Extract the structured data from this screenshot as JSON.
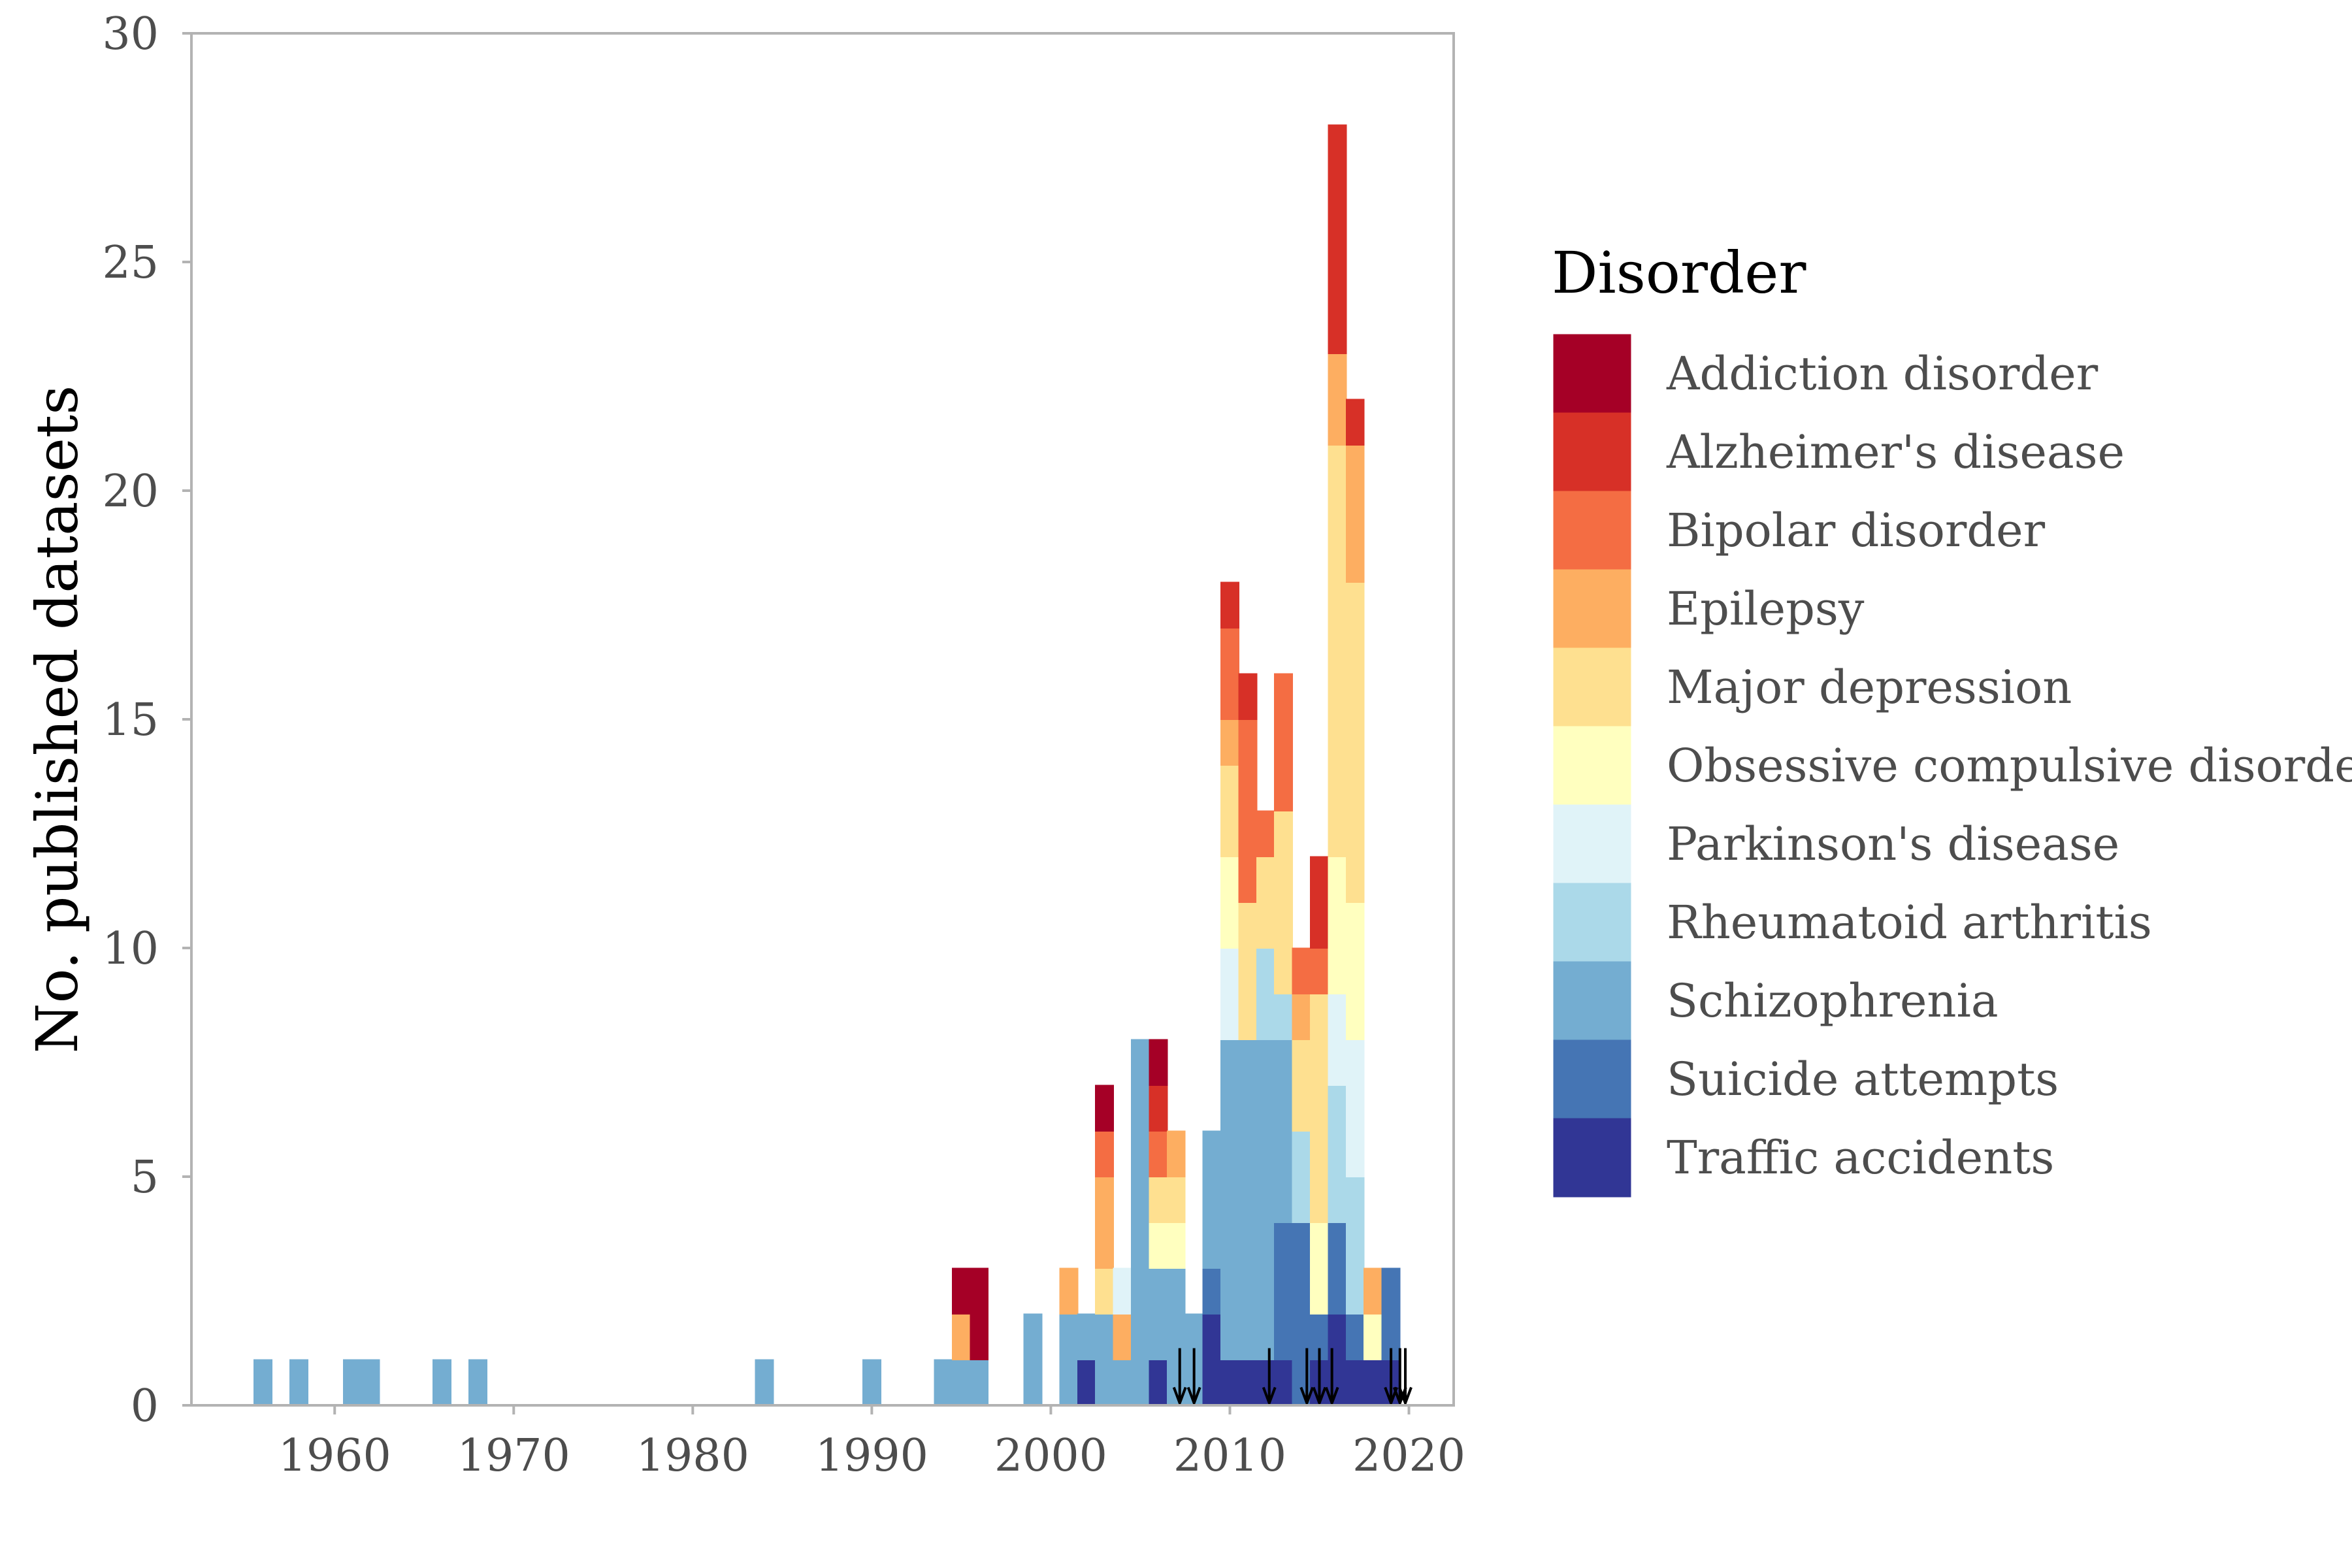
{
  "chart_data": {
    "type": "bar",
    "stacked": true,
    "ylabel": "No. published datasets",
    "xlabel": "",
    "xlim": [
      1952,
      2022.5
    ],
    "ylim": [
      0,
      30
    ],
    "x_ticks": [
      1960,
      1970,
      1980,
      1990,
      2000,
      2010,
      2020
    ],
    "y_ticks": [
      0,
      5,
      10,
      15,
      20,
      25,
      30
    ],
    "grid": false,
    "legend": {
      "title": "Disorder",
      "position": "right",
      "entries": [
        "Addiction disorder",
        "Alzheimer's disease",
        "Bipolar disorder",
        "Epilepsy",
        "Major depression",
        "Obsessive compulsive disorder",
        "Parkinson's disease",
        "Rheumatoid arthritis",
        "Schizophrenia",
        "Suicide attempts",
        "Traffic accidents"
      ]
    },
    "colors": {
      "Addiction disorder": "#a50026",
      "Alzheimer's disease": "#d73027",
      "Bipolar disorder": "#f46d43",
      "Epilepsy": "#fdae61",
      "Major depression": "#fee090",
      "Obsessive compulsive disorder": "#ffffbf",
      "Parkinson's disease": "#e0f3f8",
      "Rheumatoid arthritis": "#abd9e9",
      "Schizophrenia": "#74add1",
      "Suicide attempts": "#4575b4",
      "Traffic accidents": "#313695"
    },
    "bars": [
      {
        "year": 1956,
        "stack": [
          [
            "Schizophrenia",
            1
          ]
        ]
      },
      {
        "year": 1958,
        "stack": [
          [
            "Schizophrenia",
            1
          ]
        ]
      },
      {
        "year": 1961,
        "stack": [
          [
            "Schizophrenia",
            1
          ]
        ]
      },
      {
        "year": 1962,
        "stack": [
          [
            "Schizophrenia",
            1
          ]
        ]
      },
      {
        "year": 1966,
        "stack": [
          [
            "Schizophrenia",
            1
          ]
        ]
      },
      {
        "year": 1968,
        "stack": [
          [
            "Schizophrenia",
            1
          ]
        ]
      },
      {
        "year": 1984,
        "stack": [
          [
            "Schizophrenia",
            1
          ]
        ]
      },
      {
        "year": 1990,
        "stack": [
          [
            "Schizophrenia",
            1
          ]
        ]
      },
      {
        "year": 1994,
        "stack": [
          [
            "Schizophrenia",
            1
          ]
        ]
      },
      {
        "year": 1995,
        "stack": [
          [
            "Schizophrenia",
            1
          ],
          [
            "Epilepsy",
            1
          ],
          [
            "Addiction disorder",
            1
          ]
        ]
      },
      {
        "year": 1996,
        "stack": [
          [
            "Schizophrenia",
            1
          ],
          [
            "Addiction disorder",
            2
          ]
        ]
      },
      {
        "year": 1999,
        "stack": [
          [
            "Schizophrenia",
            2
          ]
        ]
      },
      {
        "year": 2001,
        "stack": [
          [
            "Schizophrenia",
            2
          ],
          [
            "Epilepsy",
            1
          ]
        ]
      },
      {
        "year": 2002,
        "stack": [
          [
            "Traffic accidents",
            1
          ],
          [
            "Schizophrenia",
            1
          ]
        ]
      },
      {
        "year": 2003,
        "stack": [
          [
            "Schizophrenia",
            2
          ],
          [
            "Major depression",
            1
          ],
          [
            "Epilepsy",
            2
          ],
          [
            "Bipolar disorder",
            1
          ],
          [
            "Addiction disorder",
            1
          ]
        ]
      },
      {
        "year": 2004,
        "stack": [
          [
            "Schizophrenia",
            1
          ],
          [
            "Epilepsy",
            1
          ],
          [
            "Parkinson's disease",
            1
          ]
        ]
      },
      {
        "year": 2005,
        "stack": [
          [
            "Schizophrenia",
            8
          ]
        ]
      },
      {
        "year": 2006,
        "stack": [
          [
            "Traffic accidents",
            1
          ],
          [
            "Schizophrenia",
            2
          ],
          [
            "Obsessive compulsive disorder",
            1
          ],
          [
            "Major depression",
            1
          ],
          [
            "Bipolar disorder",
            1
          ],
          [
            "Alzheimer's disease",
            1
          ],
          [
            "Addiction disorder",
            1
          ]
        ]
      },
      {
        "year": 2007,
        "stack": [
          [
            "Schizophrenia",
            3
          ],
          [
            "Obsessive compulsive disorder",
            1
          ],
          [
            "Major depression",
            1
          ],
          [
            "Epilepsy",
            1
          ]
        ]
      },
      {
        "year": 2008,
        "stack": [
          [
            "Schizophrenia",
            2
          ]
        ]
      },
      {
        "year": 2009,
        "stack": [
          [
            "Traffic accidents",
            2
          ],
          [
            "Suicide attempts",
            1
          ],
          [
            "Schizophrenia",
            3
          ]
        ]
      },
      {
        "year": 2010,
        "stack": [
          [
            "Traffic accidents",
            1
          ],
          [
            "Schizophrenia",
            7
          ],
          [
            "Parkinson's disease",
            2
          ],
          [
            "Obsessive compulsive disorder",
            2
          ],
          [
            "Major depression",
            2
          ],
          [
            "Epilepsy",
            1
          ],
          [
            "Bipolar disorder",
            2
          ],
          [
            "Alzheimer's disease",
            1
          ]
        ]
      },
      {
        "year": 2011,
        "stack": [
          [
            "Traffic accidents",
            1
          ],
          [
            "Schizophrenia",
            7
          ],
          [
            "Major depression",
            3
          ],
          [
            "Bipolar disorder",
            4
          ],
          [
            "Alzheimer's disease",
            1
          ]
        ]
      },
      {
        "year": 2012,
        "stack": [
          [
            "Traffic accidents",
            1
          ],
          [
            "Schizophrenia",
            7
          ],
          [
            "Rheumatoid arthritis",
            2
          ],
          [
            "Major depression",
            2
          ],
          [
            "Bipolar disorder",
            1
          ]
        ]
      },
      {
        "year": 2013,
        "stack": [
          [
            "Traffic accidents",
            1
          ],
          [
            "Suicide attempts",
            3
          ],
          [
            "Schizophrenia",
            4
          ],
          [
            "Rheumatoid arthritis",
            1
          ],
          [
            "Major depression",
            4
          ],
          [
            "Bipolar disorder",
            3
          ]
        ]
      },
      {
        "year": 2014,
        "stack": [
          [
            "Suicide attempts",
            4
          ],
          [
            "Rheumatoid arthritis",
            2
          ],
          [
            "Major depression",
            2
          ],
          [
            "Epilepsy",
            1
          ],
          [
            "Bipolar disorder",
            1
          ]
        ]
      },
      {
        "year": 2015,
        "stack": [
          [
            "Traffic accidents",
            1
          ],
          [
            "Suicide attempts",
            1
          ],
          [
            "Obsessive compulsive disorder",
            2
          ],
          [
            "Major depression",
            5
          ],
          [
            "Bipolar disorder",
            1
          ],
          [
            "Alzheimer's disease",
            2
          ]
        ]
      },
      {
        "year": 2016,
        "stack": [
          [
            "Traffic accidents",
            2
          ],
          [
            "Suicide attempts",
            2
          ],
          [
            "Rheumatoid arthritis",
            3
          ],
          [
            "Parkinson's disease",
            2
          ],
          [
            "Obsessive compulsive disorder",
            3
          ],
          [
            "Major depression",
            9
          ],
          [
            "Epilepsy",
            2
          ],
          [
            "Alzheimer's disease",
            5
          ]
        ]
      },
      {
        "year": 2017,
        "stack": [
          [
            "Traffic accidents",
            1
          ],
          [
            "Suicide attempts",
            1
          ],
          [
            "Rheumatoid arthritis",
            3
          ],
          [
            "Parkinson's disease",
            3
          ],
          [
            "Obsessive compulsive disorder",
            3
          ],
          [
            "Major depression",
            7
          ],
          [
            "Epilepsy",
            3
          ],
          [
            "Alzheimer's disease",
            1
          ]
        ]
      },
      {
        "year": 2018,
        "stack": [
          [
            "Traffic accidents",
            1
          ],
          [
            "Obsessive compulsive disorder",
            1
          ],
          [
            "Epilepsy",
            1
          ]
        ]
      },
      {
        "year": 2019,
        "stack": [
          [
            "Traffic accidents",
            1
          ],
          [
            "Suicide attempts",
            2
          ]
        ]
      }
    ],
    "arrows_at_years": [
      2007.2,
      2008,
      2012.2,
      2014.3,
      2015,
      2015.7,
      2019,
      2019.5,
      2019.8
    ]
  }
}
